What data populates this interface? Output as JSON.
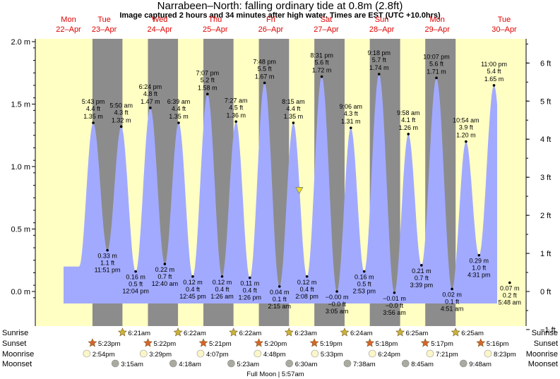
{
  "header": {
    "title": "Narrabeen–North: falling  ordinary tide at 0.8m (2.8ft)",
    "subtitle": "Image captured 2 hours and 34 minutes after high water. Times are EST (UTC +10.0hrs)"
  },
  "colors": {
    "day_bg": "#ffffc4",
    "night_bg": "#8c8c8c",
    "tide_fill": "#a2aaff",
    "day_label": "#e00000",
    "now_marker": "#e8dd22"
  },
  "chart_data": {
    "type": "area",
    "title": "Narrabeen–North: falling  ordinary tide at 0.8m (2.8ft)",
    "ylabel_left_unit": "m",
    "ylabel_right_unit": "ft",
    "ylim_m": [
      -0.1,
      2.05
    ],
    "yticks_m": [
      "2.0 m",
      "1.5 m",
      "1.0 m",
      "0.5 m",
      "0.0 m"
    ],
    "yticks_ft": [
      "6 ft",
      "5 ft",
      "4 ft",
      "3 ft",
      "2 ft",
      "1 ft",
      "0 ft",
      "−1 ft"
    ],
    "days": [
      {
        "dow": "Mon",
        "date": "22–Apr"
      },
      {
        "dow": "Tue",
        "date": "23–Apr"
      },
      {
        "dow": "Wed",
        "date": "24–Apr"
      },
      {
        "dow": "Thu",
        "date": "25–Apr"
      },
      {
        "dow": "Fri",
        "date": "26–Apr"
      },
      {
        "dow": "Sat",
        "date": "27–Apr"
      },
      {
        "dow": "Sun",
        "date": "28–Apr"
      },
      {
        "dow": "Mon",
        "date": "29–Apr"
      },
      {
        "dow": "Tue",
        "date": "30–Apr"
      }
    ],
    "tides": [
      {
        "day": 0,
        "time": "5:43 pm",
        "hour": 17.72,
        "m": 1.35,
        "label_m": "1.35 m",
        "label_ft": "4.4 ft",
        "type": "high"
      },
      {
        "day": 0,
        "time": "11:51 pm",
        "hour": 23.85,
        "m": 0.33,
        "label_m": "0.33 m",
        "label_ft": "1.1 ft",
        "type": "low"
      },
      {
        "day": 1,
        "time": "5:50 am",
        "hour": 5.83,
        "m": 1.32,
        "label_m": "1.32 m",
        "label_ft": "4.3 ft",
        "type": "high"
      },
      {
        "day": 1,
        "time": "12:04 pm",
        "hour": 12.07,
        "m": 0.16,
        "label_m": "0.16 m",
        "label_ft": "0.5 ft",
        "type": "low"
      },
      {
        "day": 1,
        "time": "6:24 pm",
        "hour": 18.4,
        "m": 1.47,
        "label_m": "1.47 m",
        "label_ft": "4.8 ft",
        "type": "high"
      },
      {
        "day": 2,
        "time": "12:40 am",
        "hour": 0.67,
        "m": 0.22,
        "label_m": "0.22 m",
        "label_ft": "0.7 ft",
        "type": "low"
      },
      {
        "day": 2,
        "time": "6:39 am",
        "hour": 6.65,
        "m": 1.35,
        "label_m": "1.35 m",
        "label_ft": "4.4 ft",
        "type": "high"
      },
      {
        "day": 2,
        "time": "12:45 pm",
        "hour": 12.75,
        "m": 0.12,
        "label_m": "0.12 m",
        "label_ft": "0.4 ft",
        "type": "low"
      },
      {
        "day": 2,
        "time": "7:07 pm",
        "hour": 19.12,
        "m": 1.58,
        "label_m": "1.58 m",
        "label_ft": "5.2 ft",
        "type": "high"
      },
      {
        "day": 3,
        "time": "1:26 am",
        "hour": 1.43,
        "m": 0.12,
        "label_m": "0.12 m",
        "label_ft": "0.4 ft",
        "type": "low"
      },
      {
        "day": 3,
        "time": "7:27 am",
        "hour": 7.45,
        "m": 1.36,
        "label_m": "1.36 m",
        "label_ft": "4.5 ft",
        "type": "high"
      },
      {
        "day": 3,
        "time": "1:26 pm",
        "hour": 13.43,
        "m": 0.11,
        "label_m": "0.11 m",
        "label_ft": "0.4 ft",
        "type": "low"
      },
      {
        "day": 3,
        "time": "7:48 pm",
        "hour": 19.8,
        "m": 1.67,
        "label_m": "1.67 m",
        "label_ft": "5.5 ft",
        "type": "high"
      },
      {
        "day": 4,
        "time": "2:15 am",
        "hour": 2.25,
        "m": 0.04,
        "label_m": "0.04 m",
        "label_ft": "0.1 ft",
        "type": "low"
      },
      {
        "day": 4,
        "time": "8:15 am",
        "hour": 8.25,
        "m": 1.35,
        "label_m": "1.35 m",
        "label_ft": "4.4 ft",
        "type": "high"
      },
      {
        "day": 4,
        "time": "2:08 pm",
        "hour": 14.13,
        "m": 0.12,
        "label_m": "0.12 m",
        "label_ft": "0.4 ft",
        "type": "low"
      },
      {
        "day": 4,
        "time": "8:31 pm",
        "hour": 20.52,
        "m": 1.72,
        "label_m": "1.72 m",
        "label_ft": "5.6 ft",
        "type": "high"
      },
      {
        "day": 5,
        "time": "3:05 am",
        "hour": 3.08,
        "m": -0.0,
        "label_m": "−0.00 m",
        "label_ft": "−0.0 ft",
        "type": "low"
      },
      {
        "day": 5,
        "time": "9:06 am",
        "hour": 9.1,
        "m": 1.31,
        "label_m": "1.31 m",
        "label_ft": "4.3 ft",
        "type": "high"
      },
      {
        "day": 5,
        "time": "2:53 pm",
        "hour": 14.88,
        "m": 0.16,
        "label_m": "0.16 m",
        "label_ft": "0.5 ft",
        "type": "low"
      },
      {
        "day": 5,
        "time": "9:18 pm",
        "hour": 21.3,
        "m": 1.74,
        "label_m": "1.74 m",
        "label_ft": "5.7 ft",
        "type": "high"
      },
      {
        "day": 6,
        "time": "3:56 am",
        "hour": 3.93,
        "m": -0.01,
        "label_m": "−0.01 m",
        "label_ft": "−0.0 ft",
        "type": "low"
      },
      {
        "day": 6,
        "time": "9:58 am",
        "hour": 9.97,
        "m": 1.26,
        "label_m": "1.26 m",
        "label_ft": "4.1 ft",
        "type": "high"
      },
      {
        "day": 6,
        "time": "3:39 pm",
        "hour": 15.65,
        "m": 0.21,
        "label_m": "0.21 m",
        "label_ft": "0.7 ft",
        "type": "low"
      },
      {
        "day": 6,
        "time": "10:07 pm",
        "hour": 22.12,
        "m": 1.71,
        "label_m": "1.71 m",
        "label_ft": "5.6 ft",
        "type": "high"
      },
      {
        "day": 7,
        "time": "4:51 am",
        "hour": 4.85,
        "m": 0.02,
        "label_m": "0.02 m",
        "label_ft": "0.1 ft",
        "type": "low"
      },
      {
        "day": 7,
        "time": "10:54 am",
        "hour": 10.9,
        "m": 1.2,
        "label_m": "1.20 m",
        "label_ft": "3.9 ft",
        "type": "high"
      },
      {
        "day": 7,
        "time": "4:31 pm",
        "hour": 16.52,
        "m": 0.29,
        "label_m": "0.29 m",
        "label_ft": "1.0 ft",
        "type": "low"
      },
      {
        "day": 7,
        "time": "11:00 pm",
        "hour": 23.0,
        "m": 1.65,
        "label_m": "1.65 m",
        "label_ft": "5.4 ft",
        "type": "high"
      },
      {
        "day": 8,
        "time": "5:48 am",
        "hour": 5.8,
        "m": 0.07,
        "label_m": "0.07 m",
        "label_ft": "0.2 ft",
        "type": "low"
      }
    ],
    "current": {
      "m": 0.8,
      "label": "falling  ordinary tide at 0.8m (2.8ft)"
    },
    "grid": false
  },
  "astro": {
    "row_labels": {
      "sunrise": "Sunrise",
      "sunset": "Sunset",
      "moonrise": "Moonrise",
      "moonset": "Moonset"
    },
    "sunrise": [
      {
        "day": 1,
        "hour": 6.35,
        "label": "6:21am"
      },
      {
        "day": 2,
        "hour": 6.37,
        "label": "6:22am"
      },
      {
        "day": 3,
        "hour": 6.37,
        "label": "6:22am"
      },
      {
        "day": 4,
        "hour": 6.38,
        "label": "6:23am"
      },
      {
        "day": 5,
        "hour": 6.4,
        "label": "6:24am"
      },
      {
        "day": 6,
        "hour": 6.42,
        "label": "6:25am"
      },
      {
        "day": 7,
        "hour": 6.42,
        "label": "6:25am"
      }
    ],
    "sunset": [
      {
        "day": 0,
        "hour": 17.38,
        "label": "5:23pm"
      },
      {
        "day": 1,
        "hour": 17.37,
        "label": "5:22pm"
      },
      {
        "day": 2,
        "hour": 17.35,
        "label": "5:21pm"
      },
      {
        "day": 3,
        "hour": 17.33,
        "label": "5:20pm"
      },
      {
        "day": 4,
        "hour": 17.32,
        "label": "5:19pm"
      },
      {
        "day": 5,
        "hour": 17.3,
        "label": "5:18pm"
      },
      {
        "day": 6,
        "hour": 17.28,
        "label": "5:17pm"
      },
      {
        "day": 7,
        "hour": 17.27,
        "label": "5:16pm"
      }
    ],
    "moonrise": [
      {
        "day": 0,
        "hour": 14.9,
        "label": "2:54pm"
      },
      {
        "day": 1,
        "hour": 15.48,
        "label": "3:29pm"
      },
      {
        "day": 2,
        "hour": 16.12,
        "label": "4:07pm"
      },
      {
        "day": 3,
        "hour": 16.8,
        "label": "4:48pm"
      },
      {
        "day": 4,
        "hour": 17.55,
        "label": "5:33pm"
      },
      {
        "day": 5,
        "hour": 18.4,
        "label": "6:24pm"
      },
      {
        "day": 6,
        "hour": 19.35,
        "label": "7:21pm"
      },
      {
        "day": 7,
        "hour": 20.38,
        "label": "8:23pm"
      }
    ],
    "moonset": [
      {
        "day": 1,
        "hour": 3.25,
        "label": "3:15am"
      },
      {
        "day": 2,
        "hour": 4.3,
        "label": "4:18am"
      },
      {
        "day": 3,
        "hour": 5.38,
        "label": "5:23am"
      },
      {
        "day": 4,
        "hour": 6.5,
        "label": "6:30am"
      },
      {
        "day": 5,
        "hour": 7.63,
        "label": "7:38am"
      },
      {
        "day": 6,
        "hour": 8.75,
        "label": "8:45am"
      },
      {
        "day": 7,
        "hour": 9.8,
        "label": "9:48am"
      }
    ],
    "full_moon": "Full Moon | 5:57am"
  }
}
